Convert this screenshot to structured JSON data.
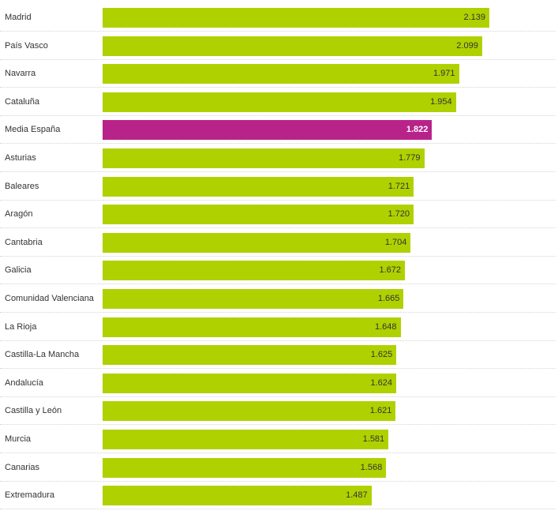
{
  "colors": {
    "bar": "#b0d100",
    "highlight": "#b8238a"
  },
  "chart_data": {
    "type": "bar",
    "orientation": "horizontal",
    "title": "",
    "xlabel": "",
    "ylabel": "",
    "xlim": [
      0,
      2200
    ],
    "grid": false,
    "legend": "none",
    "highlight_category": "Media España",
    "categories": [
      "Madrid",
      "País Vasco",
      "Navarra",
      "Cataluña",
      "Media España",
      "Asturias",
      "Baleares",
      "Aragón",
      "Cantabria",
      "Galicia",
      "Comunidad Valenciana",
      "La Rioja",
      "Castilla-La Mancha",
      "Andalucía",
      "Castilla y León",
      "Murcia",
      "Canarias",
      "Extremadura"
    ],
    "values": [
      2139,
      2099,
      1971,
      1954,
      1822,
      1779,
      1721,
      1720,
      1704,
      1672,
      1665,
      1648,
      1625,
      1624,
      1621,
      1581,
      1568,
      1487
    ],
    "value_labels": [
      "2.139",
      "2.099",
      "1.971",
      "1.954",
      "1.822",
      "1.779",
      "1.721",
      "1.720",
      "1.704",
      "1.672",
      "1.665",
      "1.648",
      "1.625",
      "1.624",
      "1.621",
      "1.581",
      "1.568",
      "1.487"
    ]
  }
}
